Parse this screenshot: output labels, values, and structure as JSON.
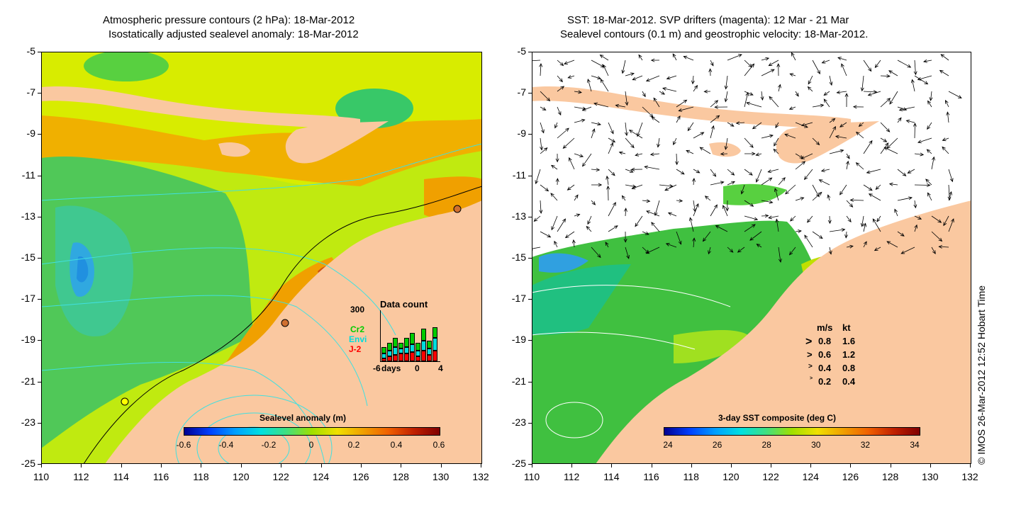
{
  "left_panel": {
    "title_line1": "Atmospheric pressure contours (2 hPa): 18-Mar-2012",
    "title_line2": "Isostatically adjusted sealevel anomaly: 18-Mar-2012",
    "colorbar_label": "Sealevel anomaly (m)",
    "colorbar_ticks": [
      "-0.6",
      "-0.4",
      "-0.2",
      "0",
      "0.2",
      "0.4",
      "0.6"
    ],
    "data_count": {
      "title": "Data count",
      "y_max": "300",
      "x_label": "days",
      "x_ticks": [
        "-6",
        "0",
        "4"
      ],
      "series": [
        {
          "name": "Cr2",
          "color": "#00cc00"
        },
        {
          "name": "Envi",
          "color": "#00dddd"
        },
        {
          "name": "J-2",
          "color": "#ff0000"
        }
      ]
    }
  },
  "right_panel": {
    "title_line1": "SST: 18-Mar-2012. SVP drifters (magenta): 12 Mar - 21 Mar",
    "title_line2": "Sealevel contours (0.1 m) and geostrophic velocity: 18-Mar-2012.",
    "colorbar_label": "3-day SST composite (deg C)",
    "colorbar_ticks": [
      "24",
      "26",
      "28",
      "30",
      "32",
      "34"
    ],
    "velocity_legend": {
      "header_ms": "m/s",
      "header_kt": "kt",
      "rows": [
        {
          "ms": "0.8",
          "kt": "1.6"
        },
        {
          "ms": "0.6",
          "kt": "1.2"
        },
        {
          "ms": "0.4",
          "kt": "0.8"
        },
        {
          "ms": "0.2",
          "kt": "0.4"
        }
      ]
    }
  },
  "axes": {
    "y_ticks": [
      "-5",
      "-7",
      "-9",
      "-11",
      "-13",
      "-15",
      "-17",
      "-19",
      "-21",
      "-23",
      "-25"
    ],
    "x_ticks": [
      "110",
      "112",
      "114",
      "116",
      "118",
      "120",
      "122",
      "124",
      "126",
      "128",
      "130",
      "132"
    ]
  },
  "credit": "© IMOS 26-Mar-2012 12:52 Hobart Time",
  "colors": {
    "land": "#fac8a0",
    "ocean_anomaly_mid": "#c8f000",
    "no_data": "#ffffff",
    "contour": "#40e0e0"
  }
}
